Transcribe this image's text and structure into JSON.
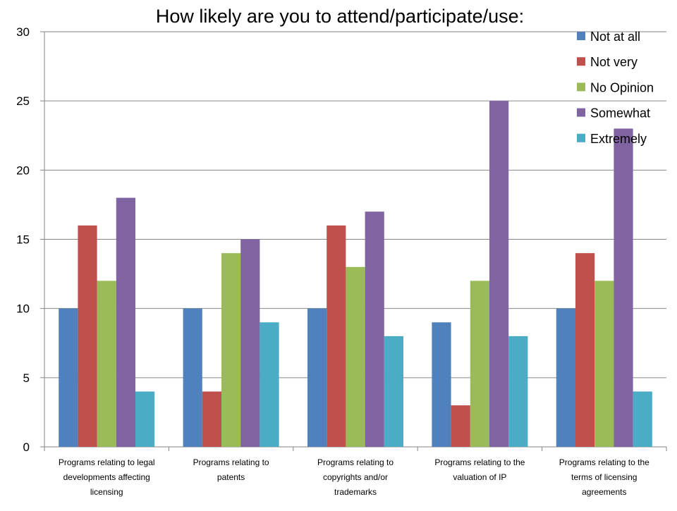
{
  "chart_data": {
    "type": "bar",
    "title": "How likely are you to attend/participate/use:",
    "categories": [
      "Programs relating to legal developments affecting licensing",
      "Programs relating to patents",
      "Programs relating to copyrights and/or trademarks",
      "Programs relating to the valuation of IP",
      "Programs relating to the terms of licensing agreements"
    ],
    "category_lines": [
      [
        "Programs relating to legal",
        "developments affecting",
        "licensing"
      ],
      [
        "Programs relating to",
        "patents"
      ],
      [
        "Programs relating to",
        "copyrights and/or",
        "trademarks"
      ],
      [
        "Programs relating to the",
        "valuation of IP"
      ],
      [
        "Programs relating to the",
        "terms of licensing",
        "agreements"
      ]
    ],
    "series": [
      {
        "name": "Not at all",
        "color": "#4F81BD",
        "values": [
          10,
          10,
          10,
          9,
          10
        ]
      },
      {
        "name": "Not very",
        "color": "#C0504D",
        "values": [
          16,
          4,
          16,
          3,
          14
        ]
      },
      {
        "name": "No Opinion",
        "color": "#9BBB59",
        "values": [
          12,
          14,
          13,
          12,
          12
        ]
      },
      {
        "name": "Somewhat",
        "color": "#8064A2",
        "values": [
          18,
          15,
          17,
          25,
          23
        ]
      },
      {
        "name": "Extremely",
        "color": "#4BACC6",
        "values": [
          4,
          9,
          8,
          8,
          4
        ]
      }
    ],
    "ylim": [
      0,
      30
    ],
    "yticks": [
      0,
      5,
      10,
      15,
      20,
      25,
      30
    ],
    "xlabel": "",
    "ylabel": "",
    "grid": true,
    "legend_position": "top-right"
  }
}
